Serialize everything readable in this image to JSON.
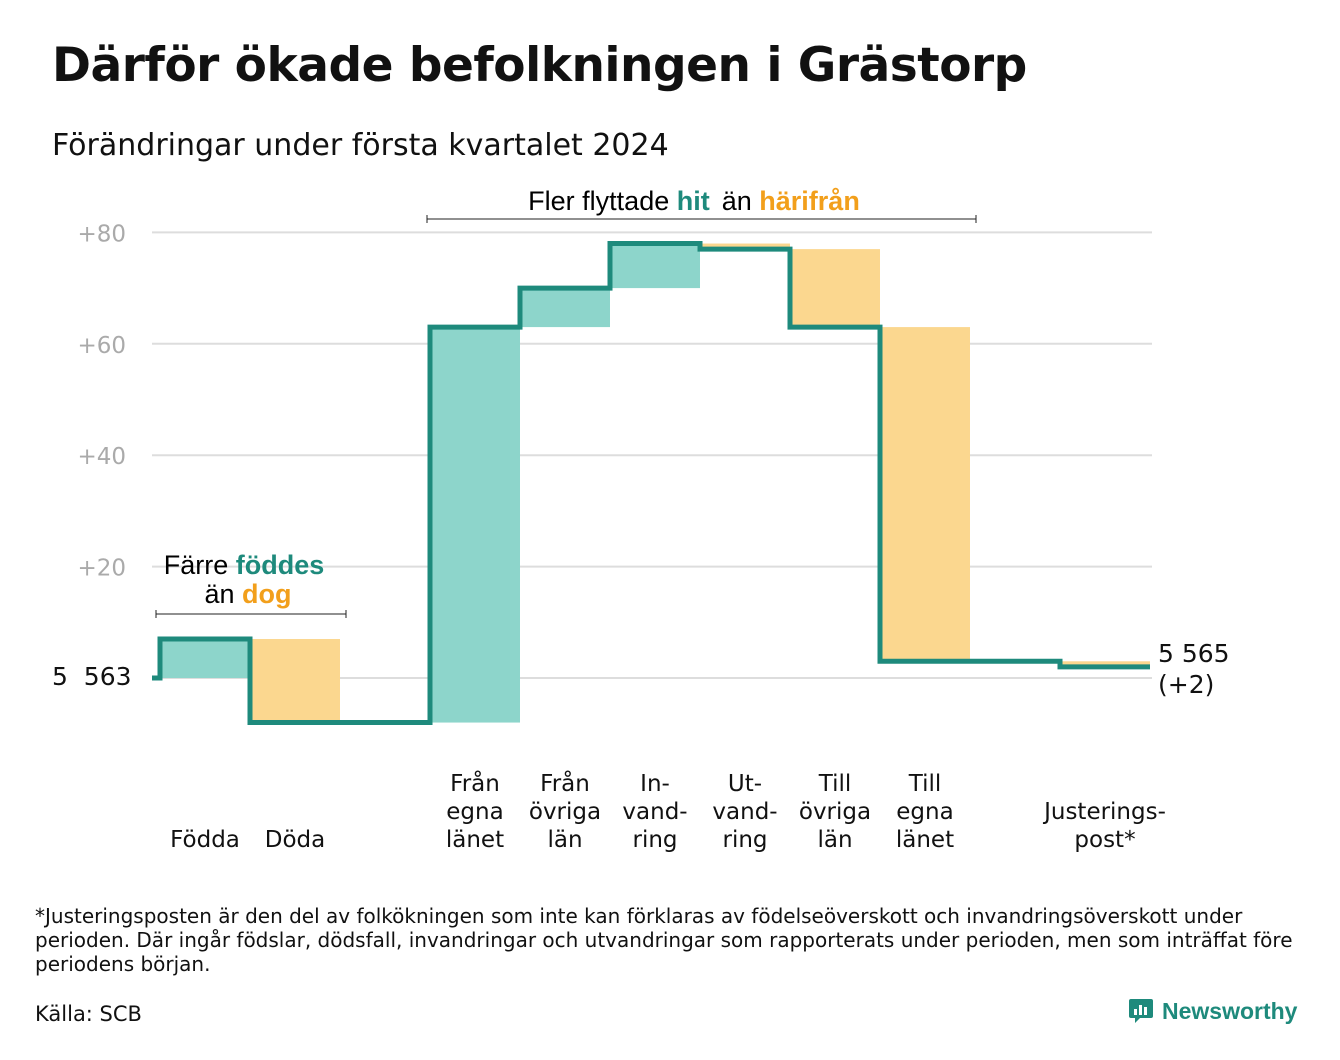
{
  "header": {
    "title": "Därför ökade befolkningen i Grästorp",
    "subtitle": "Förändringar under första kvartalet 2024"
  },
  "annotations": {
    "births_deaths": {
      "prefix": "Färre ",
      "highlight1": "föddes",
      "middle": "än ",
      "highlight2": "dog"
    },
    "migration": {
      "prefix": "Fler flyttade ",
      "highlight1": "hit",
      "middle": "än ",
      "highlight2": "härifrån"
    }
  },
  "colors": {
    "increase": "#8dd5cb",
    "decrease": "#fbd78f",
    "line": "#1e8a7c",
    "accent_orange": "#f29f1b",
    "grid": "#dddddd"
  },
  "chart_data": {
    "type": "waterfall",
    "start": {
      "value": 5563,
      "label": "5  563"
    },
    "end": {
      "value": 5565,
      "label": "5 565",
      "change_label": "(+2)"
    },
    "y_axis": {
      "ticks": [
        "+80",
        "+60",
        "+40",
        "+20"
      ],
      "tick_values": [
        80,
        60,
        40,
        20
      ],
      "range": [
        -8,
        80
      ]
    },
    "steps": [
      {
        "label": [
          "Födda"
        ],
        "delta": 7,
        "kind": "increase"
      },
      {
        "label": [
          "Döda"
        ],
        "delta": -15,
        "kind": "decrease"
      },
      {
        "label": [],
        "delta": 0,
        "kind": "gap"
      },
      {
        "label": [
          "Från",
          "egna",
          "länet"
        ],
        "delta": 71,
        "kind": "increase"
      },
      {
        "label": [
          "Från",
          "övriga",
          "län"
        ],
        "delta": 7,
        "kind": "increase"
      },
      {
        "label": [
          "In-",
          "vand-",
          "ring"
        ],
        "delta": 8,
        "kind": "increase"
      },
      {
        "label": [
          "Ut-",
          "vand-",
          "ring"
        ],
        "delta": -1,
        "kind": "decrease"
      },
      {
        "label": [
          "Till",
          "övriga",
          "län"
        ],
        "delta": -14,
        "kind": "decrease"
      },
      {
        "label": [
          "Till",
          "egna",
          "länet"
        ],
        "delta": -60,
        "kind": "decrease"
      },
      {
        "label": [],
        "delta": 0,
        "kind": "gap"
      },
      {
        "label": [
          "Justerings-",
          "post*"
        ],
        "delta": -1,
        "kind": "decrease"
      }
    ]
  },
  "footer": {
    "footnote": "*Justeringsposten är den del av folkökningen som inte kan förklaras av födelseöverskott och invandringsöverskott under perioden. Där ingår födslar, dödsfall, invandringar och utvandringar som rapporterats under perioden, men som inträffat före periodens början.",
    "source": "Källa: SCB",
    "brand": "Newsworthy"
  }
}
